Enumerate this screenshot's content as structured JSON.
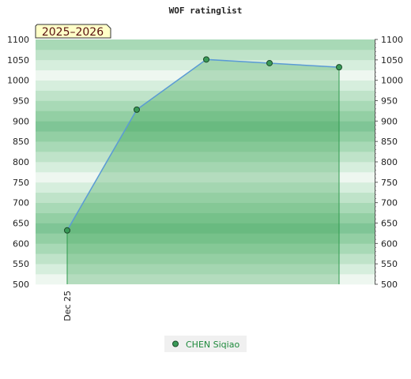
{
  "chart_data": {
    "type": "area",
    "title": "WOF ratinglist",
    "season_label": "2025–2026",
    "ylim": [
      500,
      1100
    ],
    "ytick_step": 50,
    "y_ticks": [
      "500",
      "550",
      "600",
      "650",
      "700",
      "750",
      "800",
      "850",
      "900",
      "950",
      "1000",
      "1050",
      "1100"
    ],
    "x_ticks": [
      {
        "label": "Dec 25",
        "index": 0
      }
    ],
    "series": [
      {
        "name": "CHEN Siqiao",
        "color": "#5b9bd5",
        "values": [
          632,
          928,
          1051,
          1042,
          1032
        ]
      }
    ],
    "band_colors": [
      "#eef7f0",
      "#d6eedd",
      "#bfe3c9",
      "#a8d9b6",
      "#93cfa4",
      "#7fc596"
    ],
    "fill_color": "#3aa655",
    "marker_color": "#3a9a58",
    "grid": false,
    "legend_position": "bottom-center"
  }
}
